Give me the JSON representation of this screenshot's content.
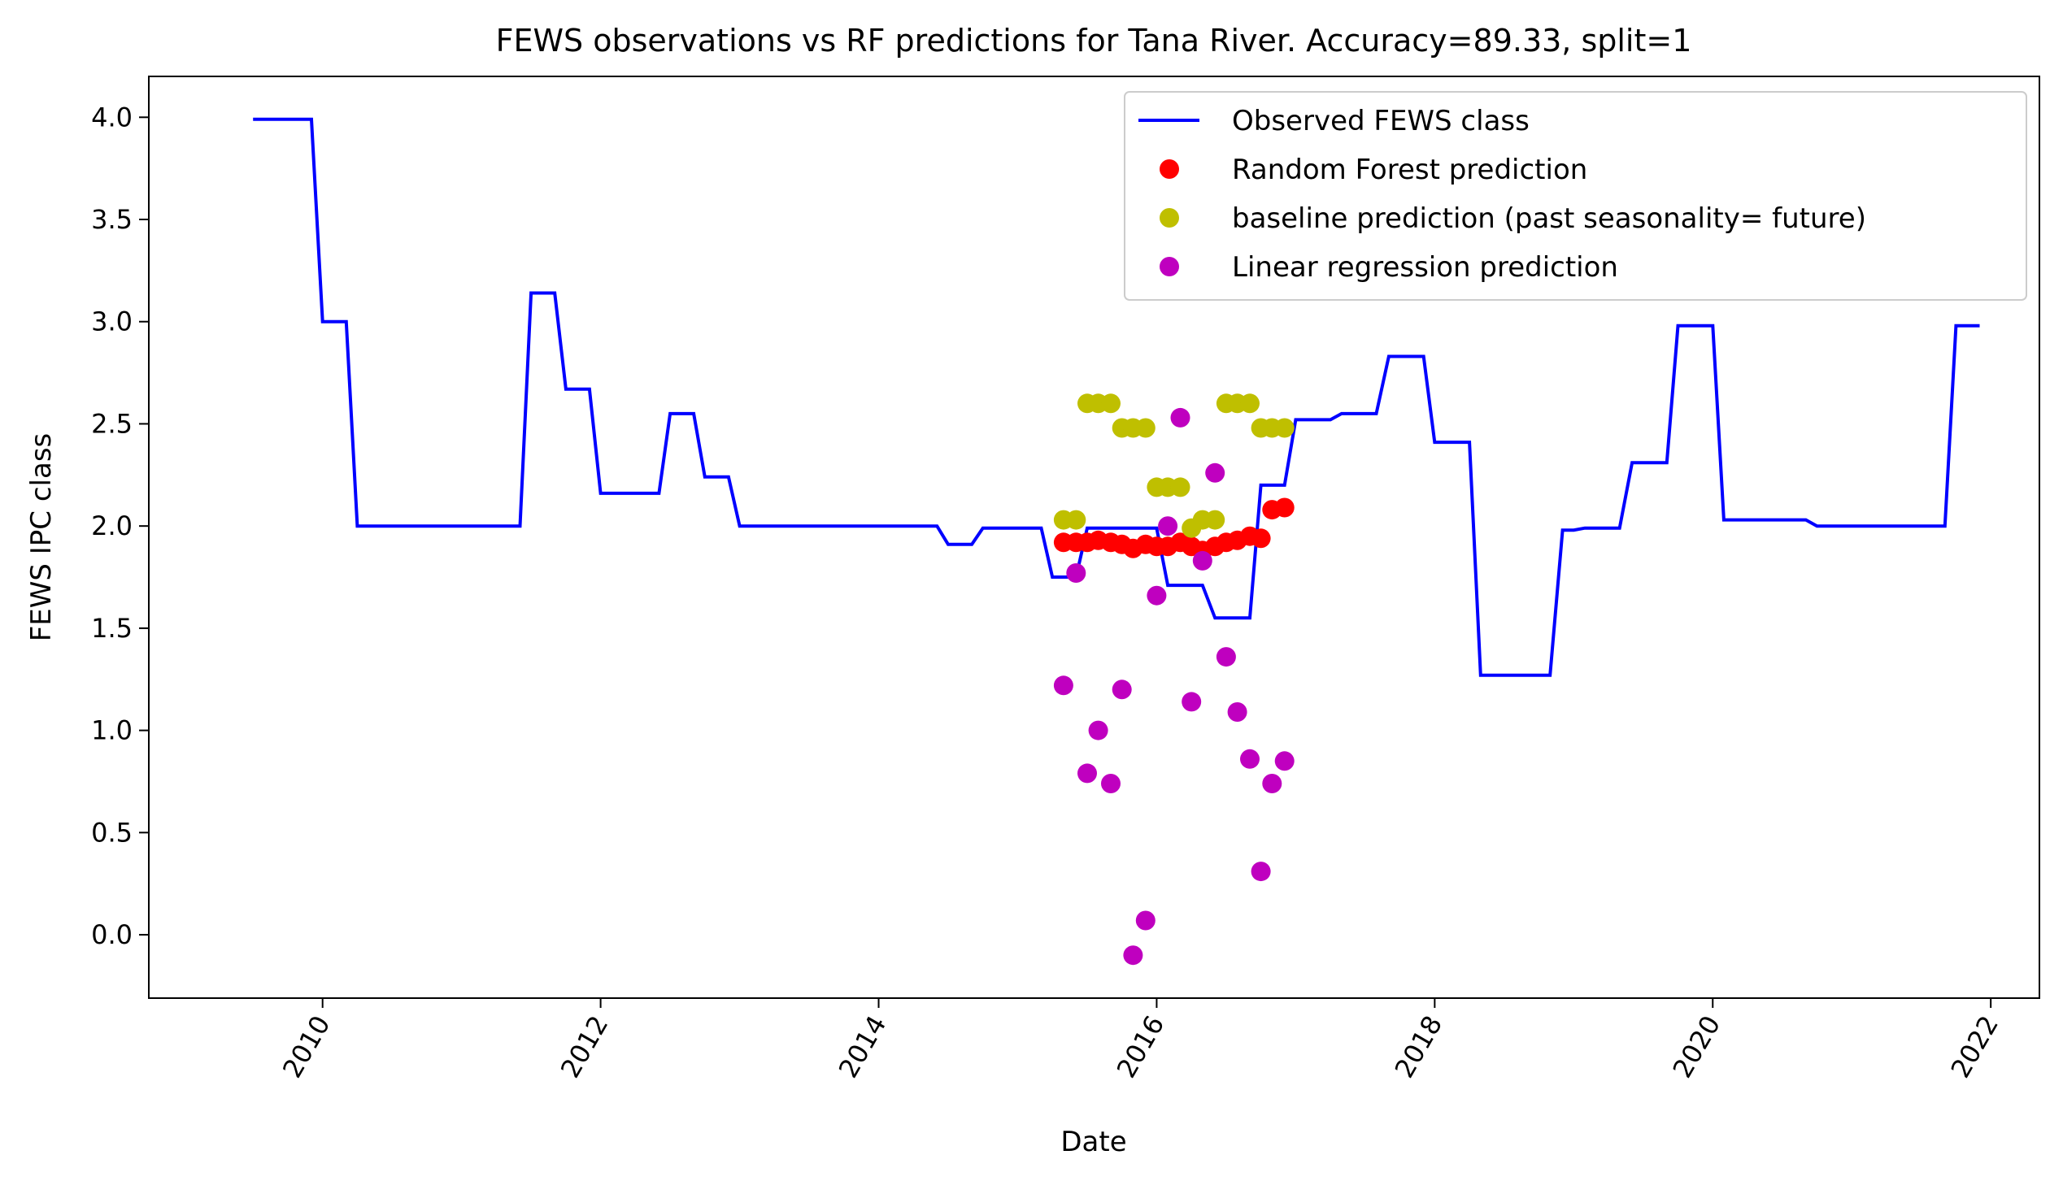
{
  "chart_data": {
    "type": "line",
    "title": "FEWS observations vs RF predictions for Tana River. Accuracy=89.33, split=1",
    "xlabel": "Date",
    "ylabel": "FEWS IPC class",
    "xlim": [
      2008.75,
      2022.35
    ],
    "ylim": [
      -0.31,
      4.2
    ],
    "xticks": [
      2010,
      2012,
      2014,
      2016,
      2018,
      2020,
      2022
    ],
    "xtick_labels": [
      "2010",
      "2012",
      "2014",
      "2016",
      "2018",
      "2020",
      "2022"
    ],
    "yticks": [
      0.0,
      0.5,
      1.0,
      1.5,
      2.0,
      2.5,
      3.0,
      3.5,
      4.0
    ],
    "ytick_labels": [
      "0.0",
      "0.5",
      "1.0",
      "1.5",
      "2.0",
      "2.5",
      "3.0",
      "3.5",
      "4.0"
    ],
    "legend_position": "upper right",
    "series": [
      {
        "name": "Observed FEWS class",
        "kind": "line",
        "color": "#0000ff",
        "points": [
          [
            2009.5,
            3.99
          ],
          [
            2009.92,
            3.99
          ],
          [
            2010.0,
            3.0
          ],
          [
            2010.17,
            3.0
          ],
          [
            2010.25,
            2.0
          ],
          [
            2011.42,
            2.0
          ],
          [
            2011.5,
            3.14
          ],
          [
            2011.67,
            3.14
          ],
          [
            2011.75,
            2.67
          ],
          [
            2011.92,
            2.67
          ],
          [
            2012.0,
            2.16
          ],
          [
            2012.42,
            2.16
          ],
          [
            2012.5,
            2.55
          ],
          [
            2012.67,
            2.55
          ],
          [
            2012.75,
            2.24
          ],
          [
            2012.92,
            2.24
          ],
          [
            2013.0,
            2.0
          ],
          [
            2014.42,
            2.0
          ],
          [
            2014.5,
            1.91
          ],
          [
            2014.67,
            1.91
          ],
          [
            2014.75,
            1.99
          ],
          [
            2015.17,
            1.99
          ],
          [
            2015.25,
            1.75
          ],
          [
            2015.42,
            1.75
          ],
          [
            2015.5,
            1.99
          ],
          [
            2016.0,
            1.99
          ],
          [
            2016.08,
            1.71
          ],
          [
            2016.33,
            1.71
          ],
          [
            2016.42,
            1.55
          ],
          [
            2016.67,
            1.55
          ],
          [
            2016.75,
            2.2
          ],
          [
            2016.92,
            2.2
          ],
          [
            2017.0,
            2.52
          ],
          [
            2017.25,
            2.52
          ],
          [
            2017.33,
            2.55
          ],
          [
            2017.58,
            2.55
          ],
          [
            2017.67,
            2.83
          ],
          [
            2017.92,
            2.83
          ],
          [
            2018.0,
            2.41
          ],
          [
            2018.25,
            2.41
          ],
          [
            2018.33,
            1.27
          ],
          [
            2018.83,
            1.27
          ],
          [
            2018.92,
            1.98
          ],
          [
            2019.0,
            1.98
          ],
          [
            2019.08,
            1.99
          ],
          [
            2019.33,
            1.99
          ],
          [
            2019.42,
            2.31
          ],
          [
            2019.67,
            2.31
          ],
          [
            2019.75,
            2.98
          ],
          [
            2020.0,
            2.98
          ],
          [
            2020.08,
            2.03
          ],
          [
            2020.67,
            2.03
          ],
          [
            2020.75,
            2.0
          ],
          [
            2021.67,
            2.0
          ],
          [
            2021.75,
            2.98
          ],
          [
            2021.92,
            2.98
          ]
        ]
      },
      {
        "name": "Random Forest prediction",
        "kind": "scatter",
        "color": "#ff0000",
        "points": [
          [
            2015.33,
            1.92
          ],
          [
            2015.42,
            1.92
          ],
          [
            2015.5,
            1.92
          ],
          [
            2015.58,
            1.93
          ],
          [
            2015.67,
            1.92
          ],
          [
            2015.75,
            1.91
          ],
          [
            2015.83,
            1.89
          ],
          [
            2015.92,
            1.91
          ],
          [
            2016.0,
            1.9
          ],
          [
            2016.08,
            1.9
          ],
          [
            2016.17,
            1.92
          ],
          [
            2016.25,
            1.9
          ],
          [
            2016.33,
            1.88
          ],
          [
            2016.42,
            1.9
          ],
          [
            2016.5,
            1.92
          ],
          [
            2016.58,
            1.93
          ],
          [
            2016.67,
            1.95
          ],
          [
            2016.75,
            1.94
          ],
          [
            2016.83,
            2.08
          ],
          [
            2016.92,
            2.09
          ]
        ]
      },
      {
        "name": "baseline prediction (past seasonality= future)",
        "kind": "scatter",
        "color": "#bfbf00",
        "points": [
          [
            2015.33,
            2.03
          ],
          [
            2015.42,
            2.03
          ],
          [
            2015.5,
            2.6
          ],
          [
            2015.58,
            2.6
          ],
          [
            2015.67,
            2.6
          ],
          [
            2015.75,
            2.48
          ],
          [
            2015.83,
            2.48
          ],
          [
            2015.92,
            2.48
          ],
          [
            2016.0,
            2.19
          ],
          [
            2016.08,
            2.19
          ],
          [
            2016.17,
            2.19
          ],
          [
            2016.25,
            1.99
          ],
          [
            2016.33,
            2.03
          ],
          [
            2016.42,
            2.03
          ],
          [
            2016.5,
            2.6
          ],
          [
            2016.58,
            2.6
          ],
          [
            2016.67,
            2.6
          ],
          [
            2016.75,
            2.48
          ],
          [
            2016.83,
            2.48
          ],
          [
            2016.92,
            2.48
          ]
        ]
      },
      {
        "name": "Linear regression prediction",
        "kind": "scatter",
        "color": "#bf00bf",
        "points": [
          [
            2015.33,
            1.22
          ],
          [
            2015.42,
            1.77
          ],
          [
            2015.5,
            0.79
          ],
          [
            2015.58,
            1.0
          ],
          [
            2015.67,
            0.74
          ],
          [
            2015.75,
            1.2
          ],
          [
            2015.83,
            -0.1
          ],
          [
            2015.92,
            0.07
          ],
          [
            2016.0,
            1.66
          ],
          [
            2016.08,
            2.0
          ],
          [
            2016.17,
            2.53
          ],
          [
            2016.25,
            1.14
          ],
          [
            2016.33,
            1.83
          ],
          [
            2016.42,
            2.26
          ],
          [
            2016.5,
            1.36
          ],
          [
            2016.58,
            1.09
          ],
          [
            2016.67,
            0.86
          ],
          [
            2016.75,
            0.31
          ],
          [
            2016.83,
            0.74
          ],
          [
            2016.92,
            0.85
          ]
        ]
      }
    ]
  }
}
